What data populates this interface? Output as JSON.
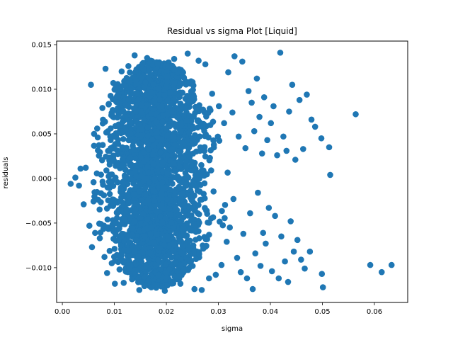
{
  "chart_data": {
    "type": "scatter",
    "title": "Residual vs sigma Plot [Liquid]",
    "xlabel": "sigma",
    "ylabel": "residuals",
    "xlim": [
      -0.0011,
      0.0664
    ],
    "ylim": [
      -0.0139,
      0.0154
    ],
    "x_ticks": [
      {
        "value": 0.0,
        "label": "0.00"
      },
      {
        "value": 0.01,
        "label": "0.01"
      },
      {
        "value": 0.02,
        "label": "0.02"
      },
      {
        "value": 0.03,
        "label": "0.03"
      },
      {
        "value": 0.04,
        "label": "0.04"
      },
      {
        "value": 0.05,
        "label": "0.05"
      },
      {
        "value": 0.06,
        "label": "0.06"
      }
    ],
    "y_ticks": [
      {
        "value": -0.01,
        "label": "−0.010"
      },
      {
        "value": -0.005,
        "label": "−0.005"
      },
      {
        "value": 0.0,
        "label": "0.000"
      },
      {
        "value": 0.005,
        "label": "0.005"
      },
      {
        "value": 0.01,
        "label": "0.010"
      },
      {
        "value": 0.015,
        "label": "0.015"
      }
    ],
    "grid": false,
    "marker_color": "#1f77b4",
    "points": [
      {
        "x": 0.0016,
        "y": -0.0006
      },
      {
        "x": 0.0025,
        "y": 0.0001
      },
      {
        "x": 0.0032,
        "y": -0.0008
      },
      {
        "x": 0.0035,
        "y": 0.0011
      },
      {
        "x": 0.0041,
        "y": -0.0029
      },
      {
        "x": 0.0045,
        "y": 0.0012
      },
      {
        "x": 0.0052,
        "y": -0.0053
      },
      {
        "x": 0.0055,
        "y": 0.0105
      },
      {
        "x": 0.0057,
        "y": -0.0077
      },
      {
        "x": 0.0061,
        "y": 0.005
      },
      {
        "x": 0.0063,
        "y": -0.0061
      },
      {
        "x": 0.0068,
        "y": 0.0046
      },
      {
        "x": 0.0072,
        "y": -0.0067
      },
      {
        "x": 0.0077,
        "y": 0.0079
      },
      {
        "x": 0.0081,
        "y": -0.0088
      },
      {
        "x": 0.0083,
        "y": 0.0123
      },
      {
        "x": 0.0086,
        "y": -0.0106
      },
      {
        "x": 0.0089,
        "y": 0.0083
      },
      {
        "x": 0.0095,
        "y": -0.0095
      },
      {
        "x": 0.0098,
        "y": 0.0107
      },
      {
        "x": 0.0101,
        "y": -0.0118
      },
      {
        "x": 0.0105,
        "y": 0.0092
      },
      {
        "x": 0.011,
        "y": -0.0102
      },
      {
        "x": 0.0114,
        "y": 0.012
      },
      {
        "x": 0.0118,
        "y": -0.0117
      },
      {
        "x": 0.0127,
        "y": 0.0126
      },
      {
        "x": 0.0134,
        "y": -0.0113
      },
      {
        "x": 0.0139,
        "y": 0.0138
      },
      {
        "x": 0.0148,
        "y": -0.0125
      },
      {
        "x": 0.0163,
        "y": 0.0135
      },
      {
        "x": 0.0171,
        "y": -0.0122
      },
      {
        "x": 0.0183,
        "y": 0.0128
      },
      {
        "x": 0.0197,
        "y": -0.0126
      },
      {
        "x": 0.0215,
        "y": 0.0134
      },
      {
        "x": 0.0227,
        "y": -0.0118
      },
      {
        "x": 0.0241,
        "y": 0.014
      },
      {
        "x": 0.0254,
        "y": -0.0124
      },
      {
        "x": 0.0262,
        "y": 0.0132
      },
      {
        "x": 0.0268,
        "y": -0.0125
      },
      {
        "x": 0.0275,
        "y": 0.0128
      },
      {
        "x": 0.0282,
        "y": -0.0112
      },
      {
        "x": 0.0288,
        "y": 0.0095
      },
      {
        "x": 0.0295,
        "y": -0.0108
      },
      {
        "x": 0.0301,
        "y": 0.0081
      },
      {
        "x": 0.0306,
        "y": -0.0097
      },
      {
        "x": 0.0311,
        "y": 0.0062
      },
      {
        "x": 0.0316,
        "y": -0.0071
      },
      {
        "x": 0.0319,
        "y": 0.0119
      },
      {
        "x": 0.0322,
        "y": -0.0055
      },
      {
        "x": 0.0327,
        "y": 0.0074
      },
      {
        "x": 0.0329,
        "y": -0.0023
      },
      {
        "x": 0.0331,
        "y": 0.0137
      },
      {
        "x": 0.0336,
        "y": -0.0089
      },
      {
        "x": 0.0339,
        "y": 0.0047
      },
      {
        "x": 0.0343,
        "y": -0.0105
      },
      {
        "x": 0.0346,
        "y": 0.0131
      },
      {
        "x": 0.0348,
        "y": -0.0062
      },
      {
        "x": 0.0352,
        "y": 0.0034
      },
      {
        "x": 0.0355,
        "y": -0.0112
      },
      {
        "x": 0.0358,
        "y": 0.0098
      },
      {
        "x": 0.0361,
        "y": -0.0039
      },
      {
        "x": 0.0364,
        "y": 0.0085
      },
      {
        "x": 0.0366,
        "y": -0.0124
      },
      {
        "x": 0.0369,
        "y": 0.0053
      },
      {
        "x": 0.0371,
        "y": -0.0084
      },
      {
        "x": 0.0374,
        "y": 0.0112
      },
      {
        "x": 0.0376,
        "y": -0.0016
      },
      {
        "x": 0.0379,
        "y": 0.0069
      },
      {
        "x": 0.0381,
        "y": -0.0098
      },
      {
        "x": 0.0384,
        "y": 0.0028
      },
      {
        "x": 0.0386,
        "y": -0.0061
      },
      {
        "x": 0.0388,
        "y": 0.0091
      },
      {
        "x": 0.0391,
        "y": -0.0073
      },
      {
        "x": 0.0394,
        "y": 0.0043
      },
      {
        "x": 0.0397,
        "y": -0.0033
      },
      {
        "x": 0.0401,
        "y": 0.0062
      },
      {
        "x": 0.0403,
        "y": -0.0104
      },
      {
        "x": 0.0406,
        "y": 0.0081
      },
      {
        "x": 0.0409,
        "y": -0.0042
      },
      {
        "x": 0.0413,
        "y": 0.0026
      },
      {
        "x": 0.0416,
        "y": -0.0112
      },
      {
        "x": 0.0419,
        "y": 0.0141
      },
      {
        "x": 0.0421,
        "y": -0.0065
      },
      {
        "x": 0.0425,
        "y": 0.0047
      },
      {
        "x": 0.0428,
        "y": -0.0093
      },
      {
        "x": 0.0431,
        "y": 0.0031
      },
      {
        "x": 0.0434,
        "y": -0.0116
      },
      {
        "x": 0.0436,
        "y": 0.0075
      },
      {
        "x": 0.0439,
        "y": -0.0048
      },
      {
        "x": 0.0442,
        "y": 0.0105
      },
      {
        "x": 0.0445,
        "y": -0.0082
      },
      {
        "x": 0.0448,
        "y": 0.0021
      },
      {
        "x": 0.0452,
        "y": -0.0069
      },
      {
        "x": 0.0456,
        "y": 0.0088
      },
      {
        "x": 0.0459,
        "y": -0.0091
      },
      {
        "x": 0.0463,
        "y": 0.0033
      },
      {
        "x": 0.0466,
        "y": -0.0101
      },
      {
        "x": 0.047,
        "y": 0.0094
      },
      {
        "x": 0.0476,
        "y": -0.0082
      },
      {
        "x": 0.0479,
        "y": 0.0066
      },
      {
        "x": 0.0486,
        "y": 0.0058
      },
      {
        "x": 0.0498,
        "y": 0.0045
      },
      {
        "x": 0.0499,
        "y": -0.0107
      },
      {
        "x": 0.0501,
        "y": -0.0122
      },
      {
        "x": 0.0513,
        "y": 0.0035
      },
      {
        "x": 0.0515,
        "y": 0.0004
      },
      {
        "x": 0.0564,
        "y": 0.0072
      },
      {
        "x": 0.0592,
        "y": -0.0097
      },
      {
        "x": 0.0614,
        "y": -0.0105
      },
      {
        "x": 0.0633,
        "y": -0.0097
      }
    ],
    "dense_cloud": {
      "x_core_range": [
        0.006,
        0.028
      ],
      "x_peak": 0.018,
      "y_range": [
        -0.0125,
        0.014
      ]
    }
  }
}
